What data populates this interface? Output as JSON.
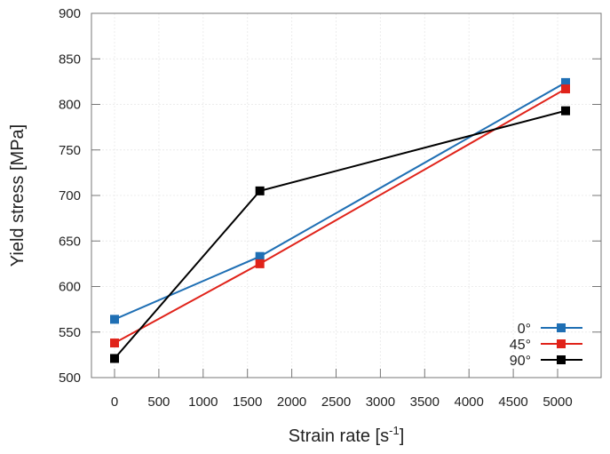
{
  "chart_data": {
    "type": "line",
    "title": "",
    "xlabel": "Strain rate [s",
    "xlabel_sup": "-1",
    "xlabel_end": "]",
    "ylabel": "Yield stress [MPa]",
    "xlim": [
      -250,
      5500
    ],
    "ylim": [
      500,
      900
    ],
    "xticks": [
      0,
      500,
      1000,
      1500,
      2000,
      2500,
      3000,
      3500,
      4000,
      4500,
      5000
    ],
    "yticks": [
      500,
      550,
      600,
      650,
      700,
      750,
      800,
      850,
      900
    ],
    "grid": true,
    "legend_position": "bottom-right",
    "series": [
      {
        "name": "0°",
        "color": "#1f6fb4",
        "x": [
          0,
          1640,
          5090
        ],
        "y": [
          564,
          633,
          824
        ]
      },
      {
        "name": "45°",
        "color": "#e0231a",
        "x": [
          0,
          1640,
          5090
        ],
        "y": [
          538,
          625,
          817
        ]
      },
      {
        "name": "90°",
        "color": "#000000",
        "x": [
          0,
          1640,
          5090
        ],
        "y": [
          521,
          705,
          793
        ]
      }
    ]
  }
}
